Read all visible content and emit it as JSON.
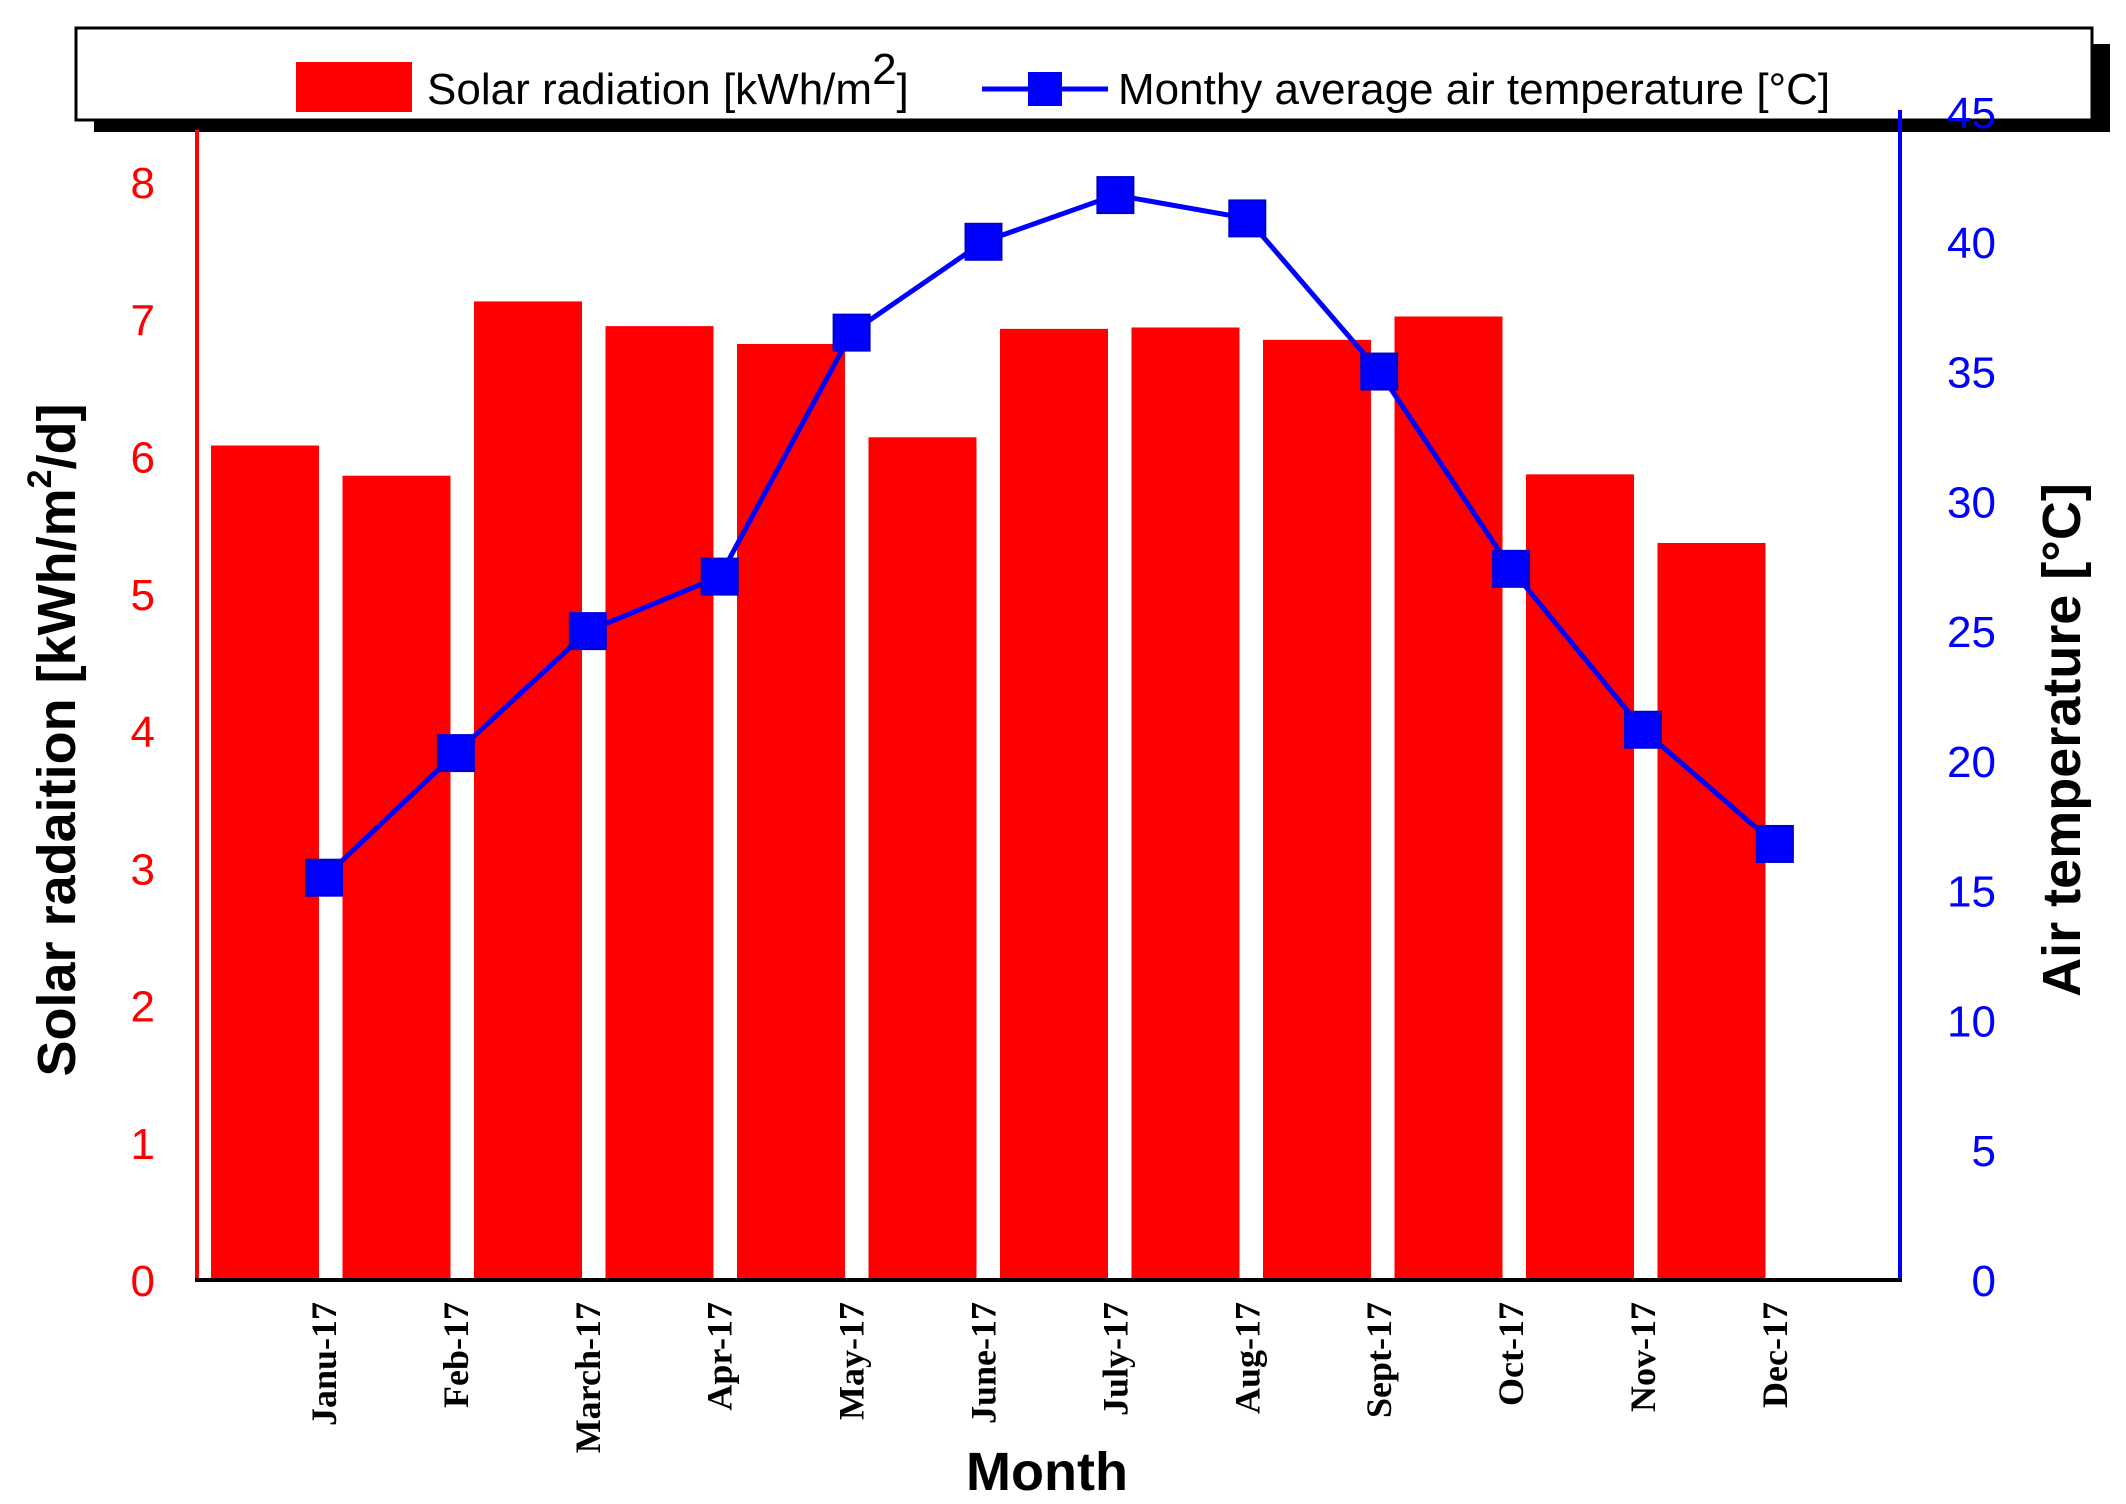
{
  "chart_data": {
    "type": "bar",
    "xlabel": "Month",
    "categories": [
      "Janu-17",
      "Feb-17",
      "March-17",
      "Apr-17",
      "May-17",
      "June-17",
      "July-17",
      "Aug-17",
      "Sept-17",
      "Oct-17",
      "Nov-17",
      "Dec-17"
    ],
    "left_axis": {
      "label_main": "Solar radaition [kWh/m",
      "label_sup": "2",
      "label_tail": "/d]",
      "ylim": [
        0,
        8
      ],
      "ticks": [
        "0",
        "1",
        "2",
        "3",
        "4",
        "5",
        "6",
        "7",
        "8"
      ],
      "color": "#ff0000"
    },
    "right_axis": {
      "label": "Air temperature [°C]",
      "ylim": [
        0,
        45
      ],
      "ticks": [
        "0",
        "5",
        "10",
        "15",
        "20",
        "25",
        "30",
        "35",
        "40",
        "45"
      ],
      "color": "#0000ff"
    },
    "series": [
      {
        "name": "Solar radiation",
        "kind": "bar",
        "axis": "left",
        "color": "#ff0000",
        "values": [
          6.08,
          5.86,
          7.13,
          6.95,
          6.82,
          6.14,
          6.93,
          6.94,
          6.85,
          7.02,
          5.87,
          5.37
        ]
      },
      {
        "name": "Monthy average air temperature",
        "kind": "line",
        "axis": "right",
        "color": "#0000ff",
        "values": [
          15.5,
          20.3,
          25.0,
          27.1,
          36.5,
          40.0,
          41.8,
          40.9,
          35.0,
          27.4,
          21.2,
          16.8
        ]
      }
    ],
    "legend": {
      "position": "top",
      "bar_label_main": "Solar radiation [kWh/m",
      "bar_label_sup": "2",
      "bar_label_tail": "]",
      "line_label": "Monthy average air temperature [°C]"
    }
  }
}
